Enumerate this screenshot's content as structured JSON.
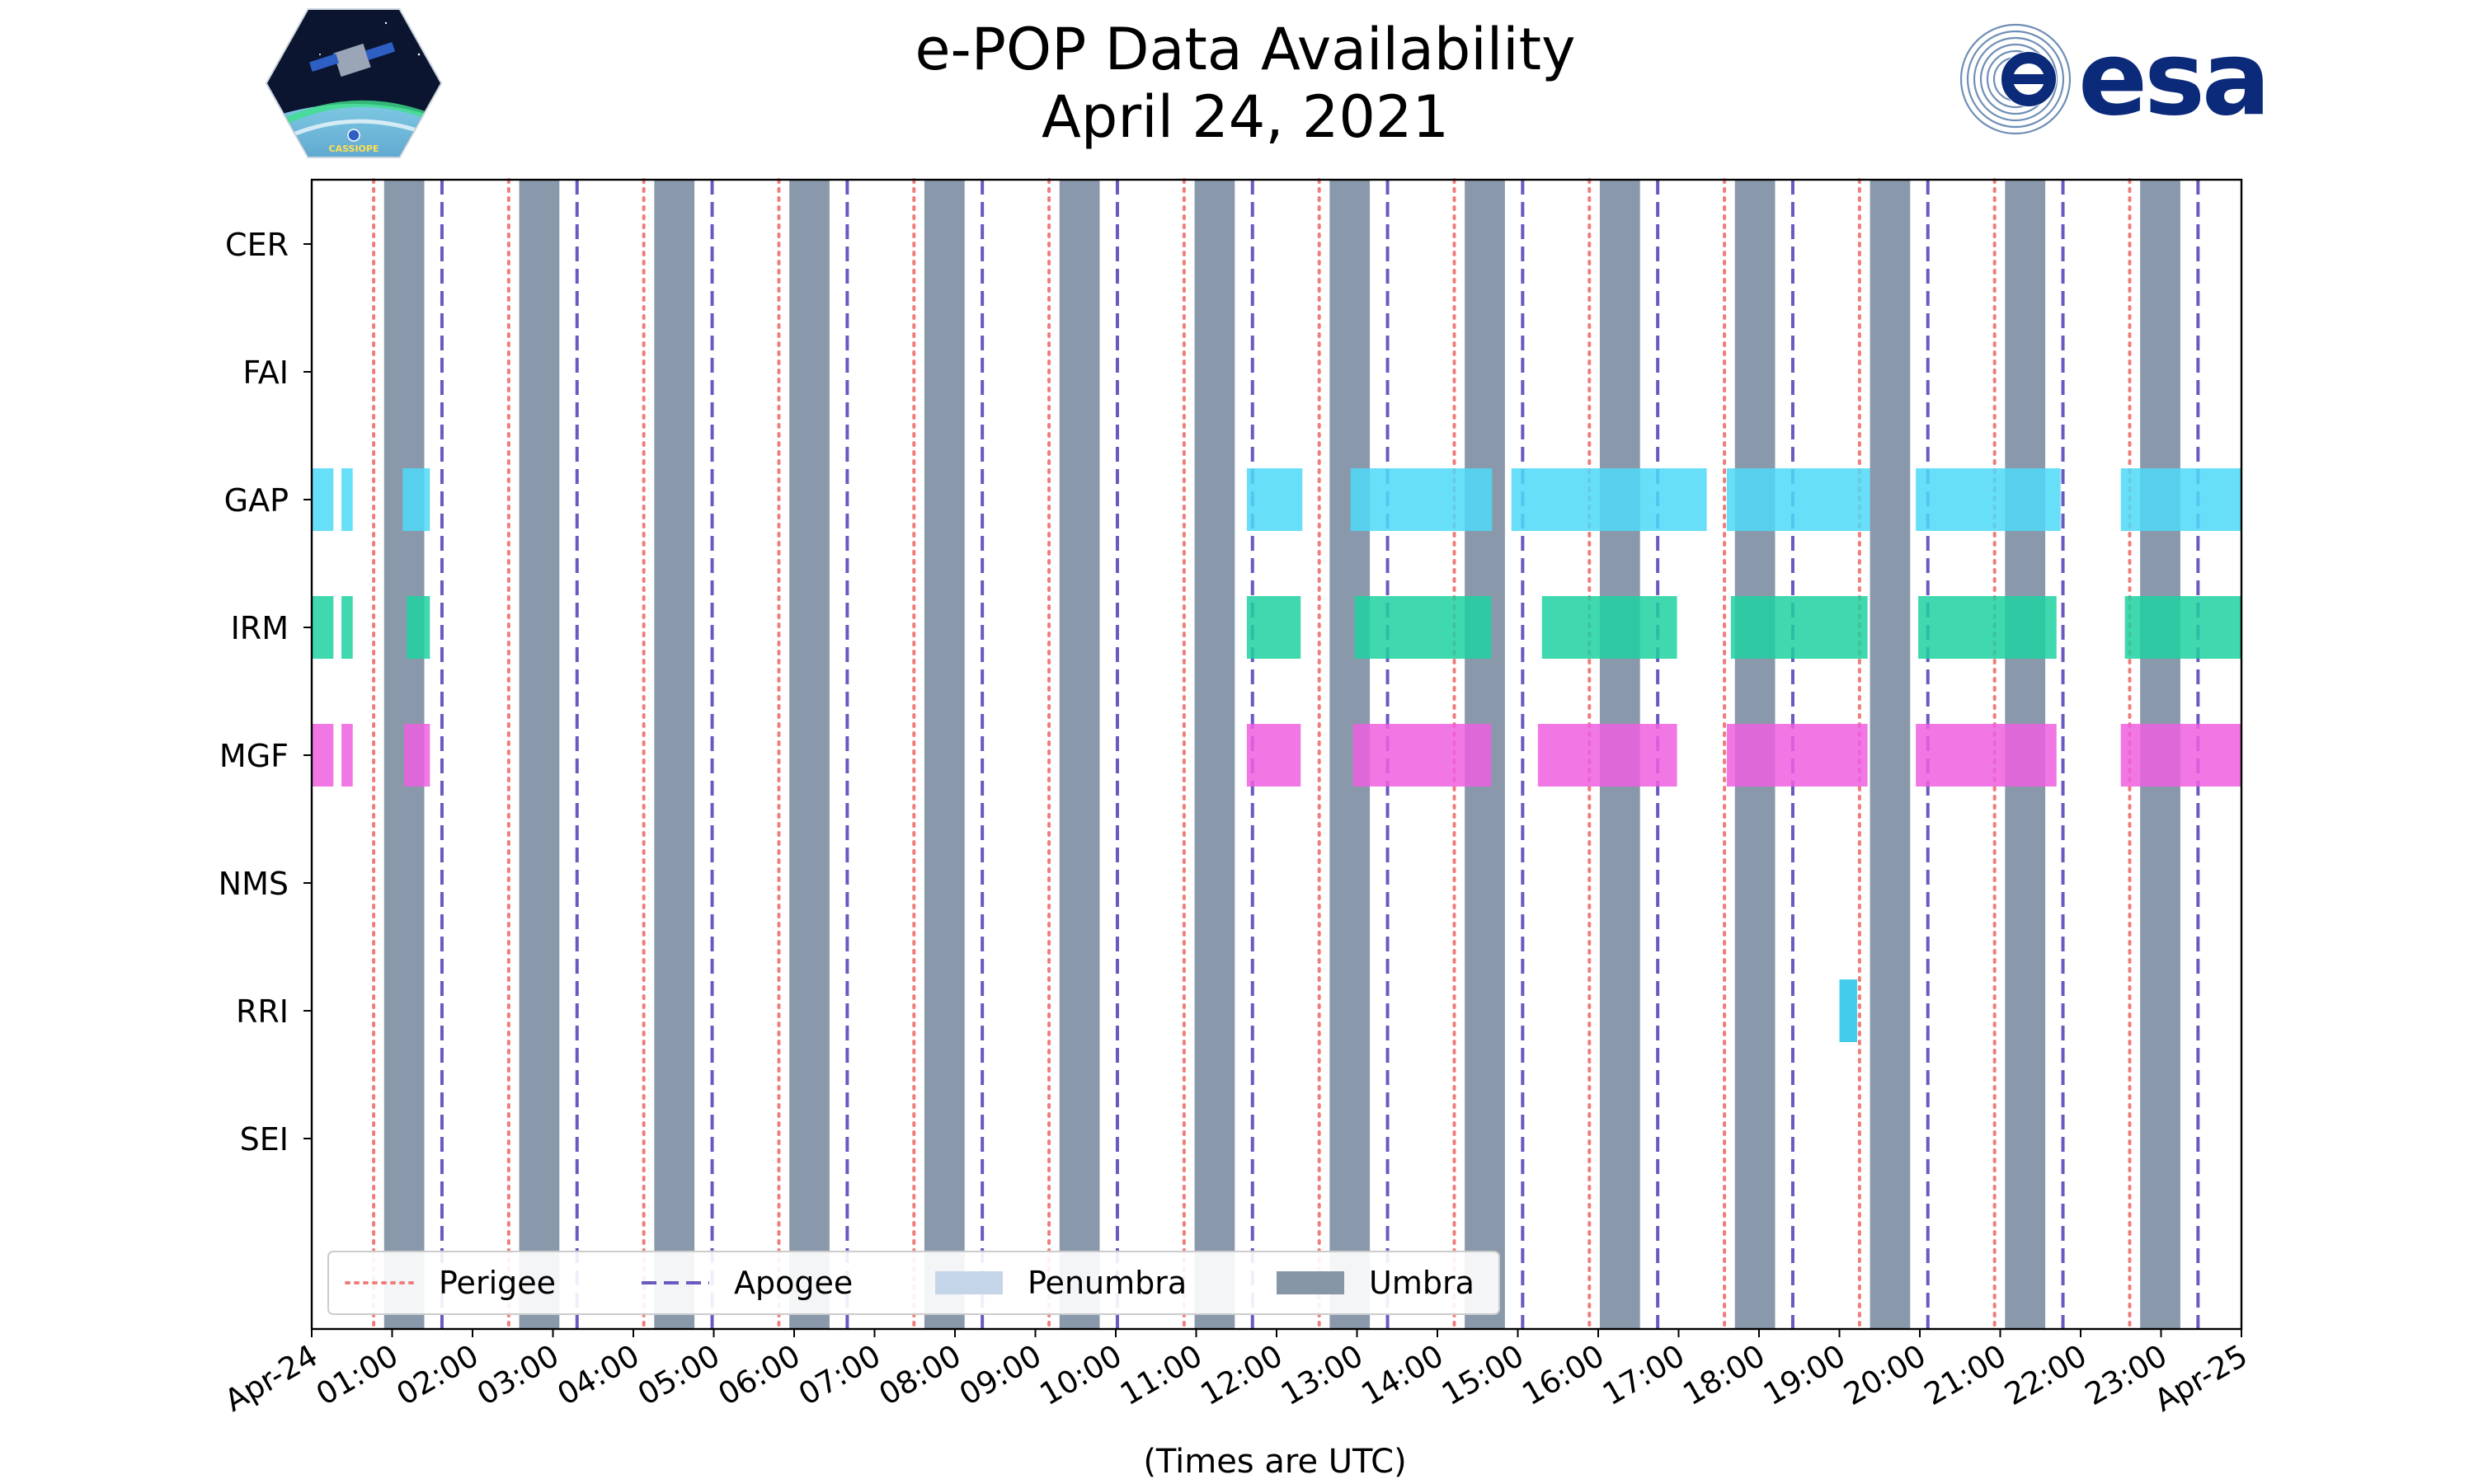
{
  "chart_data": {
    "type": "timeline",
    "title": "e-POP Data Availability",
    "subtitle": "April 24, 2021",
    "xlabel": "(Times are UTC)",
    "x_range_hours": [
      0,
      24
    ],
    "x_ticks": [
      {
        "hour": 0,
        "label": "Apr-24"
      },
      {
        "hour": 1,
        "label": "01:00"
      },
      {
        "hour": 2,
        "label": "02:00"
      },
      {
        "hour": 3,
        "label": "03:00"
      },
      {
        "hour": 4,
        "label": "04:00"
      },
      {
        "hour": 5,
        "label": "05:00"
      },
      {
        "hour": 6,
        "label": "06:00"
      },
      {
        "hour": 7,
        "label": "07:00"
      },
      {
        "hour": 8,
        "label": "08:00"
      },
      {
        "hour": 9,
        "label": "09:00"
      },
      {
        "hour": 10,
        "label": "10:00"
      },
      {
        "hour": 11,
        "label": "11:00"
      },
      {
        "hour": 12,
        "label": "12:00"
      },
      {
        "hour": 13,
        "label": "13:00"
      },
      {
        "hour": 14,
        "label": "14:00"
      },
      {
        "hour": 15,
        "label": "15:00"
      },
      {
        "hour": 16,
        "label": "16:00"
      },
      {
        "hour": 17,
        "label": "17:00"
      },
      {
        "hour": 18,
        "label": "18:00"
      },
      {
        "hour": 19,
        "label": "19:00"
      },
      {
        "hour": 20,
        "label": "20:00"
      },
      {
        "hour": 21,
        "label": "21:00"
      },
      {
        "hour": 22,
        "label": "22:00"
      },
      {
        "hour": 23,
        "label": "23:00"
      },
      {
        "hour": 24,
        "label": "Apr-25"
      }
    ],
    "instruments": [
      "CER",
      "FAI",
      "GAP",
      "IRM",
      "MGF",
      "NMS",
      "RRI",
      "SEI"
    ],
    "perigee_hours": [
      0.77,
      2.45,
      4.13,
      5.81,
      7.49,
      9.17,
      10.85,
      12.53,
      14.21,
      15.89,
      17.57,
      19.25,
      20.93,
      22.61
    ],
    "apogee_hours": [
      1.62,
      3.3,
      4.98,
      6.66,
      8.34,
      10.02,
      11.7,
      13.38,
      15.06,
      16.74,
      18.42,
      20.1,
      21.78,
      23.46
    ],
    "umbra_intervals": [
      [
        0.9,
        1.4
      ],
      [
        2.58,
        3.08
      ],
      [
        4.26,
        4.76
      ],
      [
        5.94,
        6.44
      ],
      [
        7.62,
        8.12
      ],
      [
        9.3,
        9.8
      ],
      [
        10.98,
        11.48
      ],
      [
        12.66,
        13.16
      ],
      [
        14.34,
        14.84
      ],
      [
        16.02,
        16.52
      ],
      [
        17.7,
        18.2
      ],
      [
        19.38,
        19.88
      ],
      [
        21.06,
        21.56
      ],
      [
        22.74,
        23.24
      ]
    ],
    "penumbra_intervals": [],
    "colors": {
      "GAP": "#4dd9f7",
      "IRM": "#1fd1a0",
      "MGF": "#ef5fe0",
      "RRI": "#22c3e8",
      "perigee": "#f07c7c",
      "apogee": "#6a5abf",
      "umbra": "#6b7f96",
      "umbra_legend": "#8696a7",
      "penumbra": "#c5d5e8"
    },
    "series": [
      {
        "name": "GAP",
        "intervals": [
          [
            0.0,
            0.27
          ],
          [
            0.37,
            0.51
          ],
          [
            1.13,
            1.47
          ],
          [
            11.63,
            12.32
          ],
          [
            12.92,
            14.68
          ],
          [
            14.92,
            17.35
          ],
          [
            17.6,
            19.38
          ],
          [
            19.95,
            21.75
          ],
          [
            22.5,
            24.0
          ]
        ]
      },
      {
        "name": "IRM",
        "intervals": [
          [
            0.0,
            0.27
          ],
          [
            0.37,
            0.51
          ],
          [
            1.18,
            1.47
          ],
          [
            11.63,
            12.3
          ],
          [
            12.97,
            14.67
          ],
          [
            15.3,
            16.98
          ],
          [
            17.65,
            19.35
          ],
          [
            19.98,
            21.7
          ],
          [
            22.55,
            24.0
          ]
        ]
      },
      {
        "name": "MGF",
        "intervals": [
          [
            0.0,
            0.27
          ],
          [
            0.37,
            0.51
          ],
          [
            1.15,
            1.47
          ],
          [
            11.63,
            12.3
          ],
          [
            12.95,
            14.67
          ],
          [
            15.25,
            16.98
          ],
          [
            17.6,
            19.35
          ],
          [
            19.95,
            21.7
          ],
          [
            22.5,
            24.0
          ]
        ]
      },
      {
        "name": "RRI",
        "intervals": [
          [
            19.0,
            19.22
          ]
        ]
      }
    ],
    "legend": {
      "placement": "lower-left",
      "items": [
        {
          "label": "Perigee",
          "style": "dotted",
          "color_key": "perigee"
        },
        {
          "label": "Apogee",
          "style": "dashed",
          "color_key": "apogee"
        },
        {
          "label": "Penumbra",
          "style": "patch",
          "color_key": "penumbra"
        },
        {
          "label": "Umbra",
          "style": "patch",
          "color_key": "umbra_legend"
        }
      ]
    }
  },
  "logos": {
    "mission_badge": "CASSIOPE",
    "agency": "esa"
  }
}
